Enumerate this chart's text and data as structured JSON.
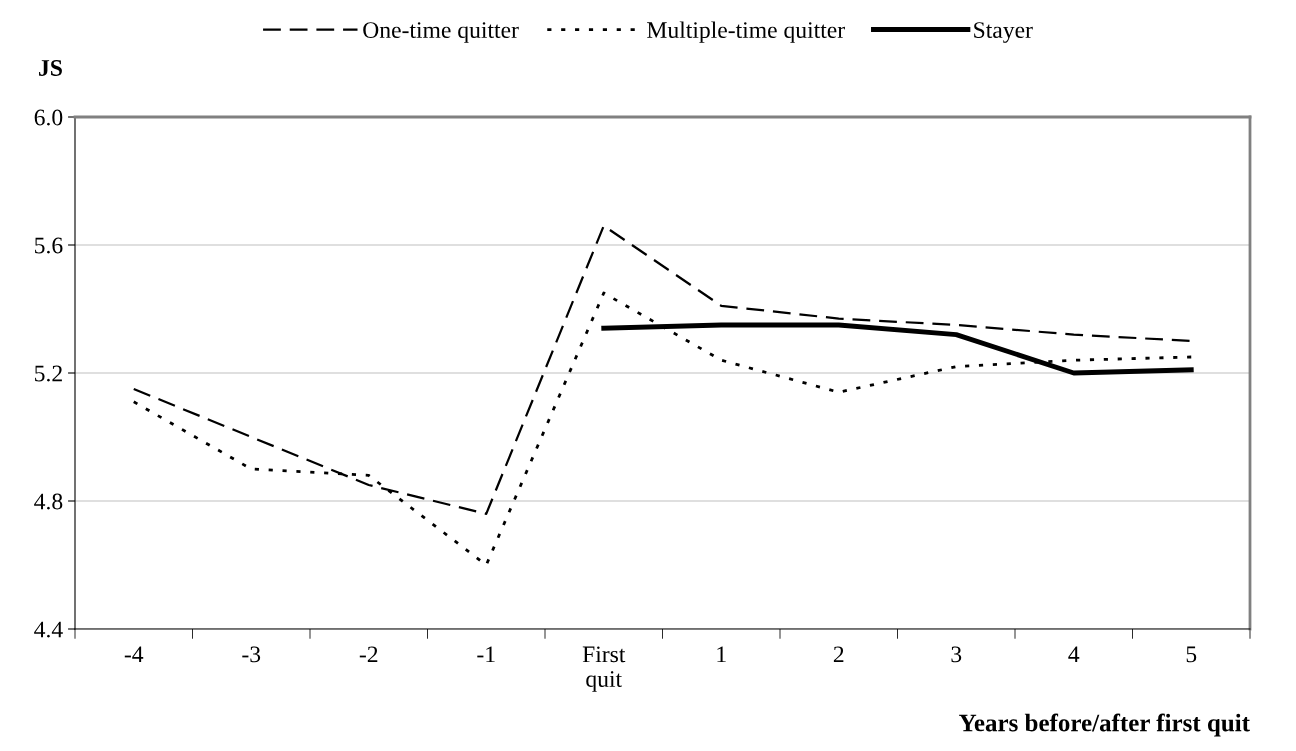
{
  "chart_data": {
    "type": "line",
    "ylabel": "JS",
    "xlabel": "Years before/after first quit",
    "categories": [
      "-4",
      "-3",
      "-2",
      "-1",
      "First\nquit",
      "1",
      "2",
      "3",
      "4",
      "5"
    ],
    "series": [
      {
        "name": "One-time quitter",
        "color": "#000000",
        "line_style": "dashed",
        "values": [
          5.15,
          5.0,
          4.85,
          4.76,
          5.66,
          5.41,
          5.37,
          5.35,
          5.32,
          5.3
        ]
      },
      {
        "name": "Multiple-time quitter",
        "color": "#000000",
        "line_style": "dotted",
        "values": [
          5.11,
          4.9,
          4.88,
          4.6,
          5.45,
          5.24,
          5.14,
          5.22,
          5.24,
          5.25
        ]
      },
      {
        "name": "Stayer",
        "color": "#000000",
        "line_style": "solid",
        "values": [
          null,
          null,
          null,
          null,
          5.34,
          5.35,
          5.35,
          5.32,
          5.2,
          5.21
        ]
      }
    ],
    "ylim": [
      4.4,
      6.0
    ],
    "yticks": [
      {
        "value": 4.4,
        "label": "4.4"
      },
      {
        "value": 4.8,
        "label": "4.8"
      },
      {
        "value": 5.2,
        "label": "5.2"
      },
      {
        "value": 5.6,
        "label": "5.6"
      },
      {
        "value": 6.0,
        "label": "6.0"
      }
    ],
    "grid": "y",
    "legend": "top",
    "marker": "none"
  }
}
